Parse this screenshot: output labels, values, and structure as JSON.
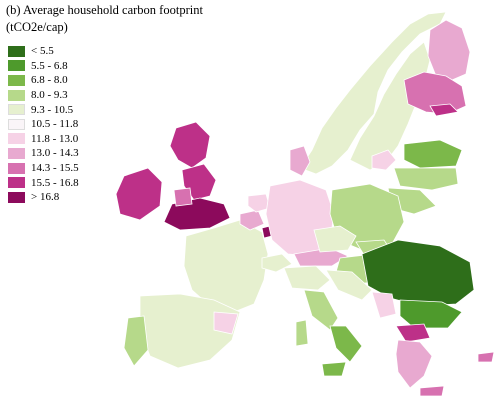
{
  "title": {
    "line1": "(b) Average household carbon footprint",
    "line2": "(tCO2e/cap)"
  },
  "legend": {
    "items": [
      {
        "label": "< 5.5",
        "color": "#2e6e1a"
      },
      {
        "label": "5.5 - 6.8",
        "color": "#4e9a2c"
      },
      {
        "label": "6.8 - 8.0",
        "color": "#7cb84a"
      },
      {
        "label": "8.0 - 9.3",
        "color": "#b6d98a"
      },
      {
        "label": "9.3 - 10.5",
        "color": "#e6f0cf"
      },
      {
        "label": "10.5 - 11.8",
        "color": "#faf5f8"
      },
      {
        "label": "11.8 - 13.0",
        "color": "#f6d2e6"
      },
      {
        "label": "13.0 - 14.3",
        "color": "#e8a9d0"
      },
      {
        "label": "14.3 - 15.5",
        "color": "#d771b0"
      },
      {
        "label": "15.5 - 16.8",
        "color": "#bd3088"
      },
      {
        "label": "> 16.8",
        "color": "#8c0a5c"
      }
    ]
  }
}
